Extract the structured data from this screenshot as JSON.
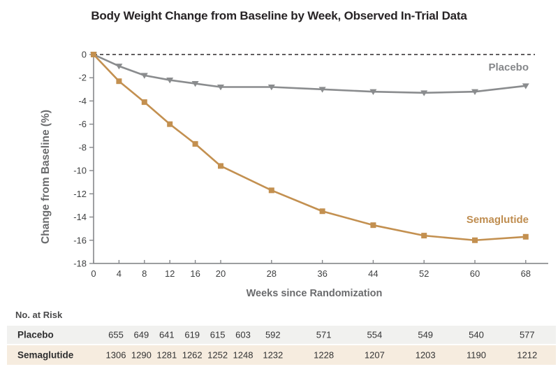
{
  "title": "Body Weight Change from Baseline by Week, Observed In-Trial Data",
  "chart_data": {
    "type": "line",
    "x": [
      0,
      4,
      8,
      12,
      16,
      20,
      28,
      36,
      44,
      52,
      60,
      68
    ],
    "x_ticks": [
      0,
      4,
      8,
      12,
      16,
      20,
      28,
      36,
      44,
      52,
      60,
      68
    ],
    "y_ticks": [
      0,
      -2,
      -4,
      -6,
      -8,
      -10,
      -12,
      -14,
      -16,
      -18
    ],
    "ylim": [
      -18,
      0
    ],
    "xlim": [
      0,
      68
    ],
    "xlabel": "Weeks since Randomization",
    "ylabel": "Change from Baseline (%)",
    "grid": false,
    "zero_baseline_dashed": true,
    "legend_position": "inline-right-of-lines",
    "series": [
      {
        "name": "Placebo",
        "marker": "triangle-down",
        "color": "#8a8c8e",
        "label_color": "#85878a",
        "values": [
          0,
          -1.0,
          -1.8,
          -2.2,
          -2.5,
          -2.8,
          -2.8,
          -3.0,
          -3.2,
          -3.3,
          -3.2,
          -2.7
        ]
      },
      {
        "name": "Semaglutide",
        "marker": "square",
        "color": "#c39050",
        "label_color": "#bf8d50",
        "values": [
          0,
          -2.3,
          -4.1,
          -6.0,
          -7.7,
          -9.6,
          -11.7,
          -13.5,
          -14.7,
          -15.6,
          -16.0,
          -15.7
        ]
      }
    ]
  },
  "at_risk": {
    "heading": "No. at Risk",
    "rows": [
      {
        "label": "Placebo",
        "bg": "#f1f1ef",
        "values": [
          655,
          649,
          641,
          619,
          615,
          603,
          592,
          571,
          554,
          549,
          540,
          577
        ]
      },
      {
        "label": "Semaglutide",
        "bg": "#f6ecdf",
        "values": [
          1306,
          1290,
          1281,
          1262,
          1252,
          1248,
          1232,
          1228,
          1207,
          1203,
          1190,
          1212
        ]
      }
    ]
  },
  "colors": {
    "axis": "#85878a",
    "tick_label": "#3f4041",
    "axis_title": "#6a6b6d",
    "zero_line": "#2d292a",
    "title": "#272325"
  }
}
